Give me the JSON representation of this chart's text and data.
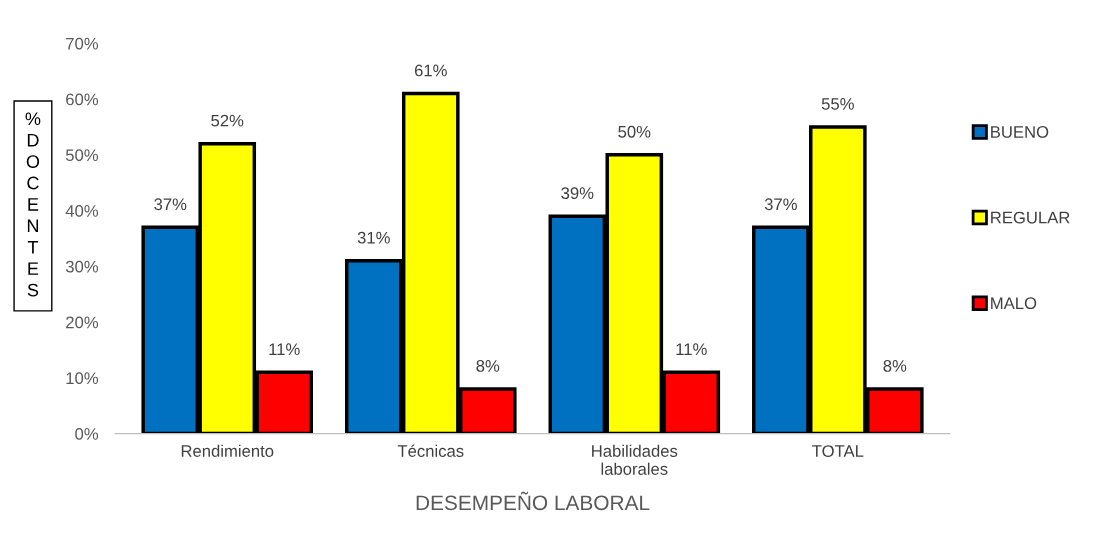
{
  "chart_data": {
    "type": "bar",
    "xlabel": "DESEMPEÑO LABORAL",
    "ylabel": "% DOCENTES",
    "categories": [
      "Rendimiento",
      "Técnicas",
      "Habilidades\nlaborales",
      "TOTAL"
    ],
    "series": [
      {
        "name": "BUENO",
        "color": "#0070c0",
        "values": [
          37,
          31,
          39,
          37
        ],
        "value_labels": [
          "37%",
          "31%",
          "39%",
          "37%"
        ]
      },
      {
        "name": "REGULAR",
        "color": "#ffff00",
        "values": [
          52,
          61,
          50,
          55
        ],
        "value_labels": [
          "52%",
          "61%",
          "50%",
          "55%"
        ]
      },
      {
        "name": "MALO",
        "color": "#ff0000",
        "values": [
          11,
          8,
          11,
          8
        ],
        "value_labels": [
          "11%",
          "8%",
          "11%",
          "8%"
        ]
      }
    ],
    "ylim": [
      0,
      70
    ],
    "yticks": [
      {
        "value": 0,
        "label": "0%"
      },
      {
        "value": 10,
        "label": "10%"
      },
      {
        "value": 20,
        "label": "20%"
      },
      {
        "value": 30,
        "label": "30%"
      },
      {
        "value": 40,
        "label": "40%"
      },
      {
        "value": 50,
        "label": "50%"
      },
      {
        "value": 60,
        "label": "60%"
      },
      {
        "value": 70,
        "label": "70%"
      }
    ],
    "grid": false,
    "legend": "right"
  }
}
